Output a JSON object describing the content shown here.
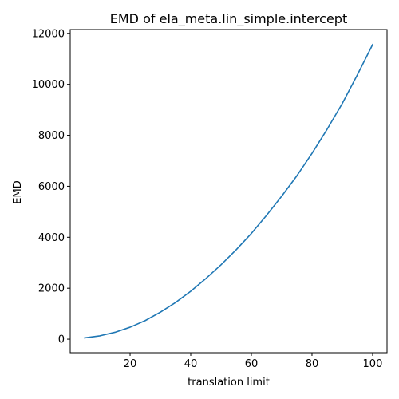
{
  "colors": {
    "series": "#1f77b4",
    "axes": "#000000",
    "background": "#ffffff"
  },
  "chart_data": {
    "type": "line",
    "title": "EMD of ela_meta.lin_simple.intercept",
    "xlabel": "translation limit",
    "ylabel": "EMD",
    "xlim": [
      0.25,
      104.75
    ],
    "ylim": [
      -530,
      12150
    ],
    "xticks": [
      20,
      40,
      60,
      80,
      100
    ],
    "yticks": [
      0,
      2000,
      4000,
      6000,
      8000,
      10000,
      12000
    ],
    "grid": false,
    "series": [
      {
        "x": [
          5,
          10,
          15,
          20,
          25,
          30,
          35,
          40,
          45,
          50,
          55,
          60,
          65,
          70,
          75,
          80,
          85,
          90,
          95,
          100
        ],
        "y": [
          50,
          130,
          270,
          470,
          730,
          1060,
          1440,
          1880,
          2380,
          2920,
          3510,
          4150,
          4860,
          5610,
          6410,
          7290,
          8240,
          9250,
          10380,
          11560
        ]
      }
    ]
  }
}
